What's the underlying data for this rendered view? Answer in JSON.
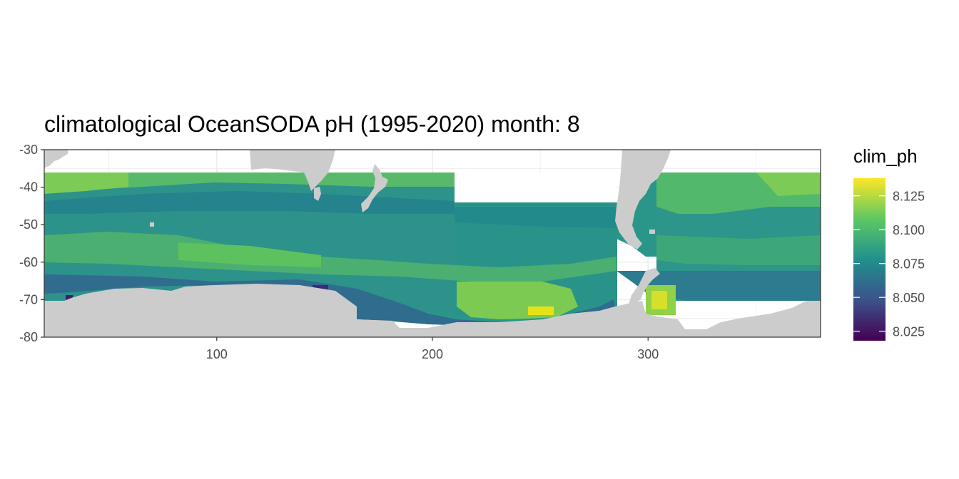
{
  "title": "climatological OceanSODA pH (1995-2020) month: 8",
  "legend": {
    "title": "clim_ph",
    "ticks": [
      "8.025",
      "8.050",
      "8.075",
      "8.100",
      "8.125"
    ],
    "tick_values": [
      8.025,
      8.05,
      8.075,
      8.1,
      8.125
    ],
    "range": [
      8.018,
      8.138
    ],
    "palette": [
      "#440154",
      "#3b528b",
      "#21908d",
      "#5dc863",
      "#fde725"
    ]
  },
  "chart_data": {
    "type": "heatmap",
    "x_ticks": [
      "100",
      "200",
      "300"
    ],
    "x_tick_values": [
      100,
      200,
      300
    ],
    "y_ticks": [
      "-30",
      "-40",
      "-50",
      "-60",
      "-70",
      "-80"
    ],
    "y_tick_values": [
      -30,
      -40,
      -50,
      -60,
      -70,
      -80
    ],
    "xlim": [
      20,
      380
    ],
    "ylim": [
      -80,
      -30
    ],
    "xlabel": "",
    "ylabel": "",
    "variable": "clim_ph",
    "land_color": "#cccccc",
    "grid": true
  }
}
